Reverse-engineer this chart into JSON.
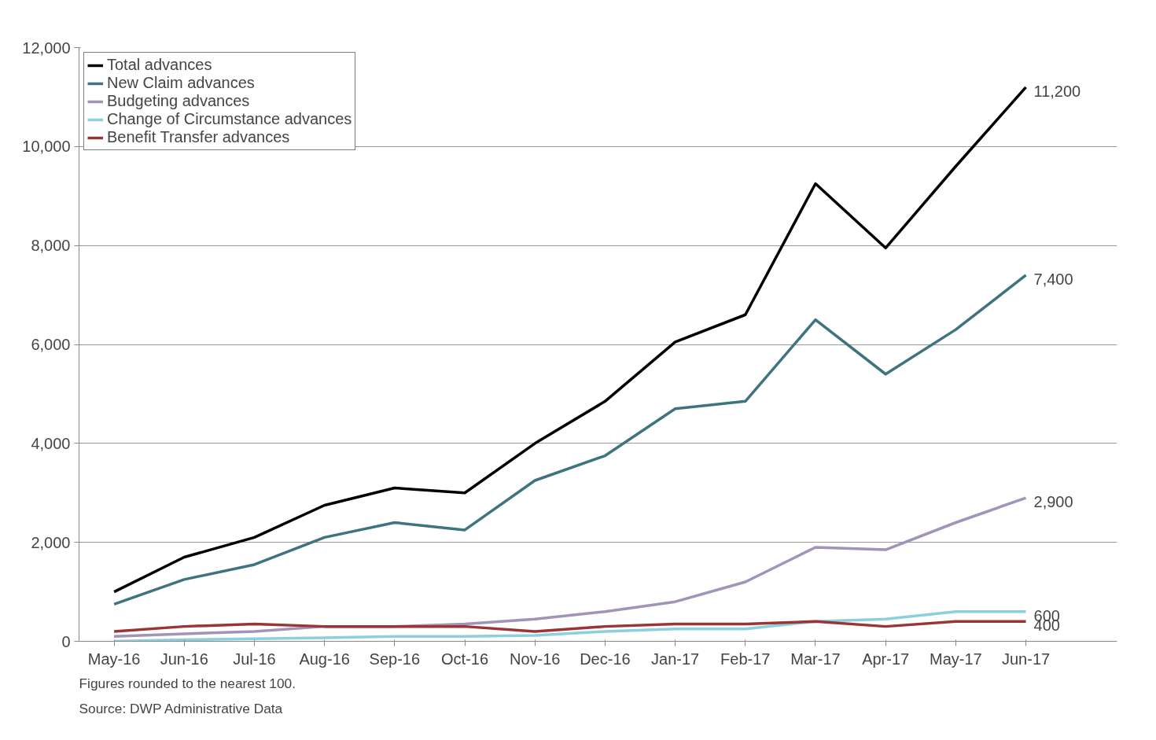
{
  "chart_data": {
    "type": "line",
    "categories": [
      "May-16",
      "Jun-16",
      "Jul-16",
      "Aug-16",
      "Sep-16",
      "Oct-16",
      "Nov-16",
      "Dec-16",
      "Jan-17",
      "Feb-17",
      "Mar-17",
      "Apr-17",
      "May-17",
      "Jun-17"
    ],
    "series": [
      {
        "name": "Total advances",
        "color": "#000000",
        "values": [
          1000,
          1700,
          2100,
          2750,
          3100,
          3000,
          4000,
          4850,
          6050,
          6600,
          9250,
          7950,
          9600,
          11200
        ],
        "value_labels": [
          null,
          null,
          null,
          null,
          null,
          null,
          null,
          null,
          null,
          null,
          null,
          null,
          null,
          "11,200"
        ]
      },
      {
        "name": "New Claim advances",
        "color": "#3f7380",
        "values": [
          750,
          1250,
          1550,
          2100,
          2400,
          2250,
          3250,
          3750,
          4700,
          4850,
          6500,
          5400,
          6300,
          7400
        ],
        "value_labels": [
          null,
          null,
          null,
          null,
          null,
          null,
          null,
          null,
          null,
          null,
          null,
          null,
          null,
          "7,400"
        ]
      },
      {
        "name": "Budgeting advances",
        "color": "#a293b9",
        "values": [
          100,
          150,
          200,
          300,
          300,
          350,
          450,
          600,
          800,
          1200,
          1900,
          1850,
          2400,
          2900
        ],
        "value_labels": [
          null,
          null,
          null,
          null,
          null,
          null,
          null,
          null,
          null,
          null,
          null,
          null,
          null,
          "2,900"
        ]
      },
      {
        "name": "Change of Circumstance advances",
        "color": "#8ccfdf",
        "values": [
          0,
          30,
          50,
          70,
          100,
          100,
          120,
          200,
          250,
          250,
          400,
          450,
          600,
          600
        ],
        "value_labels": [
          null,
          null,
          null,
          null,
          null,
          null,
          null,
          null,
          null,
          null,
          null,
          null,
          null,
          "600"
        ]
      },
      {
        "name": "Benefit Transfer advances",
        "color": "#9b3535",
        "values": [
          200,
          300,
          350,
          300,
          300,
          300,
          200,
          300,
          350,
          350,
          400,
          300,
          400,
          400
        ],
        "value_labels": [
          null,
          null,
          null,
          null,
          null,
          null,
          null,
          null,
          null,
          null,
          null,
          null,
          null,
          "400"
        ]
      }
    ],
    "ylim": [
      0,
      12000
    ],
    "yticks": [
      {
        "value": 0,
        "label": "0"
      },
      {
        "value": 2000,
        "label": "2,000"
      },
      {
        "value": 4000,
        "label": "4,000"
      },
      {
        "value": 6000,
        "label": "6,000"
      },
      {
        "value": 8000,
        "label": "8,000"
      },
      {
        "value": 10000,
        "label": "10,000"
      },
      {
        "value": 12000,
        "label": "12,000"
      }
    ],
    "grid": "y",
    "legend": "top left",
    "marker": "none",
    "line_style": "solid",
    "annotations": [
      "Figures rounded to the nearest 100.",
      "Source: DWP Administrative Data"
    ]
  }
}
